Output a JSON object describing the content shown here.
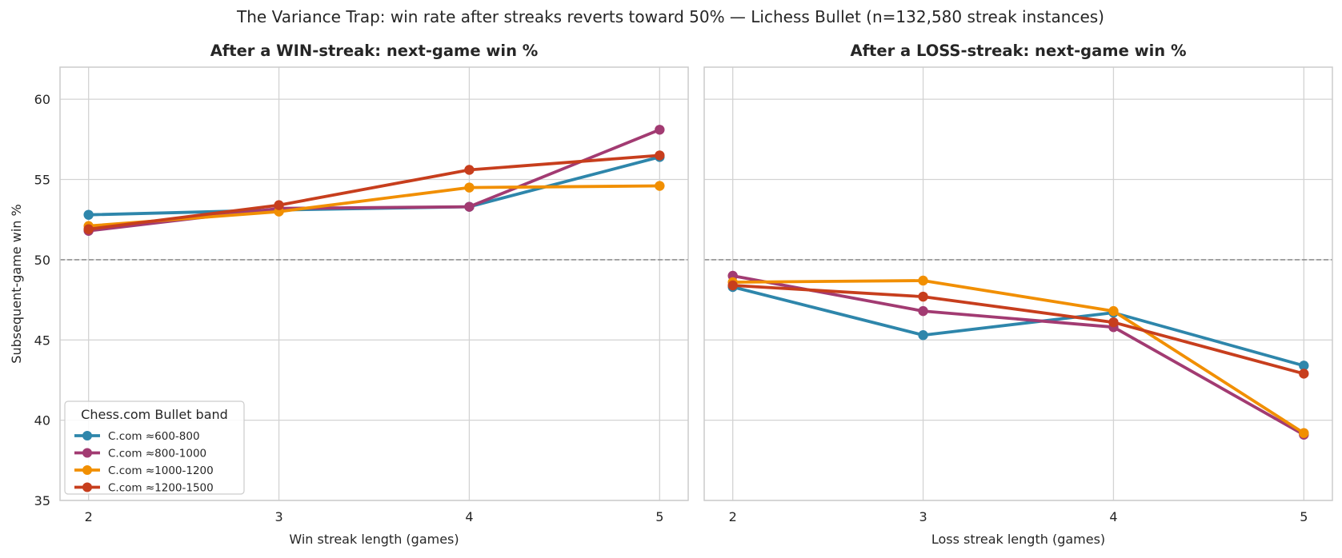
{
  "suptitle": "The Variance Trap: win rate after streaks reverts toward 50% — Lichess Bullet (n=132,580 streak instances)",
  "colors": {
    "series": [
      "#2e86ab",
      "#a23b72",
      "#f18f01",
      "#c73e1d"
    ],
    "reference_line": "#808080",
    "grid": "#d3d3d3",
    "frame": "#cccccc"
  },
  "chart_data": [
    {
      "type": "line",
      "title": "After a WIN-streak: next-game win %",
      "xlabel": "Win streak length (games)",
      "ylabel": "Subsequent-game win %",
      "x": [
        2,
        3,
        4,
        5
      ],
      "xlim": [
        1.85,
        5.15
      ],
      "ylim": [
        35,
        62
      ],
      "yticks": [
        35,
        40,
        45,
        50,
        55,
        60
      ],
      "reference_line": 50,
      "grid": true,
      "legend": {
        "title": "Chess.com Bullet band",
        "placement": "lower-left"
      },
      "series": [
        {
          "name": "C.com ≈600-800",
          "values": [
            52.8,
            53.1,
            53.3,
            56.4
          ]
        },
        {
          "name": "C.com ≈800-1000",
          "values": [
            51.8,
            53.2,
            53.3,
            58.1
          ]
        },
        {
          "name": "C.com ≈1000-1200",
          "values": [
            52.1,
            53.0,
            54.5,
            54.6
          ]
        },
        {
          "name": "C.com ≈1200-1500",
          "values": [
            51.9,
            53.4,
            55.6,
            56.5
          ]
        }
      ]
    },
    {
      "type": "line",
      "title": "After a LOSS-streak: next-game win %",
      "xlabel": "Loss streak length (games)",
      "ylabel": "",
      "x": [
        2,
        3,
        4,
        5
      ],
      "xlim": [
        1.85,
        5.15
      ],
      "ylim": [
        35,
        62
      ],
      "yticks": [
        35,
        40,
        45,
        50,
        55,
        60
      ],
      "reference_line": 50,
      "grid": true,
      "series": [
        {
          "name": "C.com ≈600-800",
          "values": [
            48.3,
            45.3,
            46.7,
            43.4
          ]
        },
        {
          "name": "C.com ≈800-1000",
          "values": [
            49.0,
            46.8,
            45.8,
            39.1
          ]
        },
        {
          "name": "C.com ≈1000-1200",
          "values": [
            48.6,
            48.7,
            46.8,
            39.2
          ]
        },
        {
          "name": "C.com ≈1200-1500",
          "values": [
            48.4,
            47.7,
            46.1,
            42.9
          ]
        }
      ]
    }
  ]
}
